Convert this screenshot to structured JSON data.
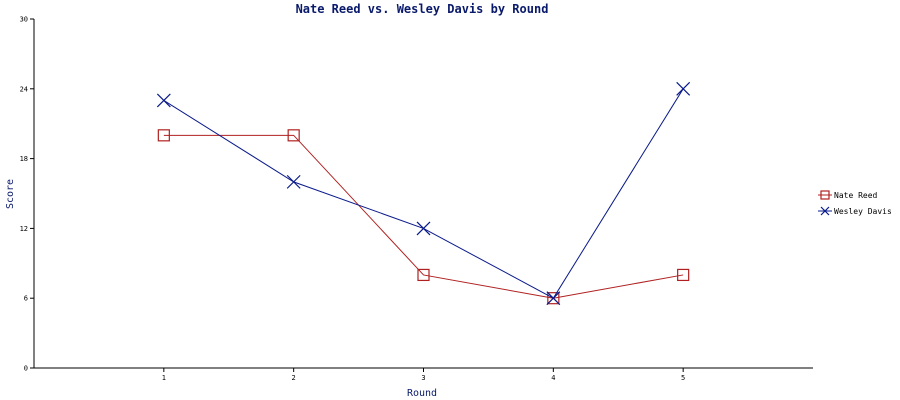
{
  "chart_data": {
    "type": "line",
    "title": "Nate Reed vs. Wesley Davis by Round",
    "xlabel": "Round",
    "ylabel": "Score",
    "x": [
      1,
      2,
      3,
      4,
      5
    ],
    "xlim": [
      0,
      6
    ],
    "ylim": [
      0,
      30
    ],
    "yticks": [
      0,
      6,
      12,
      18,
      24,
      30
    ],
    "grid": false,
    "legend_position": "right",
    "series": [
      {
        "name": "Nate Reed",
        "values": [
          20,
          20,
          8,
          6,
          8
        ],
        "color": "#b02020",
        "marker": "square"
      },
      {
        "name": "Wesley Davis",
        "values": [
          23,
          16,
          12,
          6,
          24
        ],
        "color": "#0a1a8a",
        "marker": "x"
      }
    ]
  }
}
